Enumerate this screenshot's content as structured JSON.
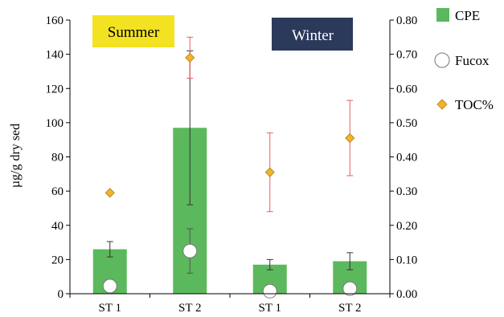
{
  "chart_data": {
    "type": "bar",
    "categories": [
      "ST 1",
      "ST 2",
      "ST 1",
      "ST 2"
    ],
    "groups": [
      "Summer",
      "Winter"
    ],
    "ylabel": "µg/g dry sed",
    "ylim": [
      0,
      160
    ],
    "yticks": [
      0,
      20,
      40,
      60,
      80,
      100,
      120,
      140,
      160
    ],
    "y2lim": [
      0,
      0.8
    ],
    "y2ticks": [
      "0.00",
      "0.10",
      "0.20",
      "0.30",
      "0.40",
      "0.50",
      "0.60",
      "0.70",
      "0.80"
    ],
    "grid": false,
    "legend_position": "right",
    "series": [
      {
        "name": "CPE",
        "kind": "bar",
        "axis": "left",
        "color": "#5cb85c",
        "values": [
          26,
          97,
          17,
          19
        ],
        "err": [
          4.5,
          45,
          3,
          5
        ]
      },
      {
        "name": "Fucox",
        "kind": "scatter",
        "axis": "left",
        "marker": "circle",
        "color": "#ffffff",
        "values": [
          4.5,
          25,
          1.5,
          3
        ],
        "err": [
          0,
          13,
          0,
          0
        ]
      },
      {
        "name": "TOC%",
        "kind": "scatter",
        "axis": "right",
        "marker": "diamond",
        "color": "#f0b429",
        "values": [
          0.295,
          0.69,
          0.355,
          0.455
        ],
        "err": [
          0,
          0.06,
          0.115,
          0.11
        ]
      }
    ],
    "group_labels": [
      {
        "text": "Summer",
        "bg": "#f3e221",
        "fg": "#000000"
      },
      {
        "text": "Winter",
        "bg": "#2b3a5b",
        "fg": "#ffffff"
      }
    ]
  }
}
